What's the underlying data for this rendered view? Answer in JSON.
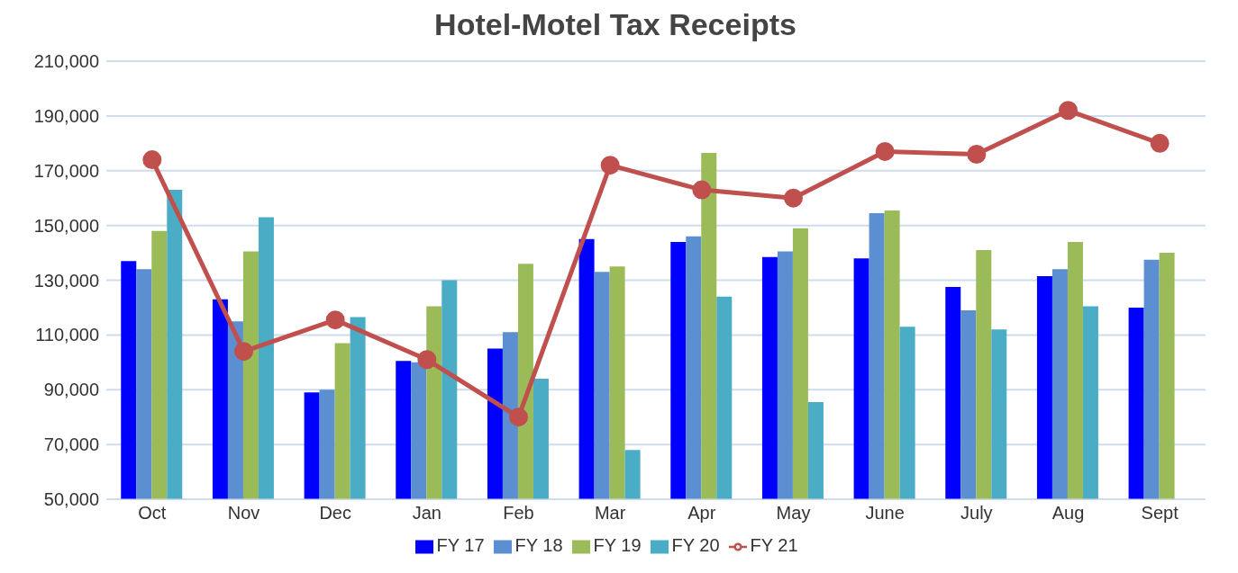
{
  "chart_data": {
    "type": "bar",
    "title": "Hotel-Motel Tax Receipts",
    "categories": [
      "Oct",
      "Nov",
      "Dec",
      "Jan",
      "Feb",
      "Mar",
      "Apr",
      "May",
      "June",
      "July",
      "Aug",
      "Sept"
    ],
    "series": [
      {
        "name": "FY 17",
        "color": "#0000ff",
        "values": [
          137000,
          123000,
          89000,
          100500,
          105000,
          145000,
          144000,
          138500,
          138000,
          127500,
          131500,
          120000
        ]
      },
      {
        "name": "FY 18",
        "color": "#5b8fd1",
        "values": [
          134000,
          115000,
          90000,
          100000,
          111000,
          133000,
          146000,
          140500,
          154500,
          119000,
          134000,
          137500
        ]
      },
      {
        "name": "FY 19",
        "color": "#9bbb59",
        "values": [
          148000,
          140500,
          107000,
          120500,
          136000,
          135000,
          176500,
          149000,
          155500,
          141000,
          144000,
          140000
        ]
      },
      {
        "name": "FY 20",
        "color": "#4bacc6",
        "values": [
          163000,
          153000,
          116500,
          130000,
          94000,
          68000,
          124000,
          85500,
          113000,
          112000,
          120500,
          null
        ]
      },
      {
        "name": "FY 21",
        "color": "#c0504d",
        "type": "line",
        "values": [
          174000,
          104000,
          115500,
          101000,
          80000,
          172000,
          163000,
          160000,
          177000,
          176000,
          192000,
          180000
        ]
      }
    ],
    "ylim": [
      50000,
      210000
    ],
    "yticks": [
      {
        "value": 50000,
        "label": "50,000"
      },
      {
        "value": 70000,
        "label": "70,000"
      },
      {
        "value": 90000,
        "label": "90,000"
      },
      {
        "value": 110000,
        "label": "110,000"
      },
      {
        "value": 130000,
        "label": "130,000"
      },
      {
        "value": 150000,
        "label": "150,000"
      },
      {
        "value": 170000,
        "label": "170,000"
      },
      {
        "value": 190000,
        "label": "190,000"
      },
      {
        "value": 210000,
        "label": "210,000"
      }
    ],
    "grid": "y",
    "legend": "bottom",
    "marker": "circle",
    "line_style": "solid"
  }
}
